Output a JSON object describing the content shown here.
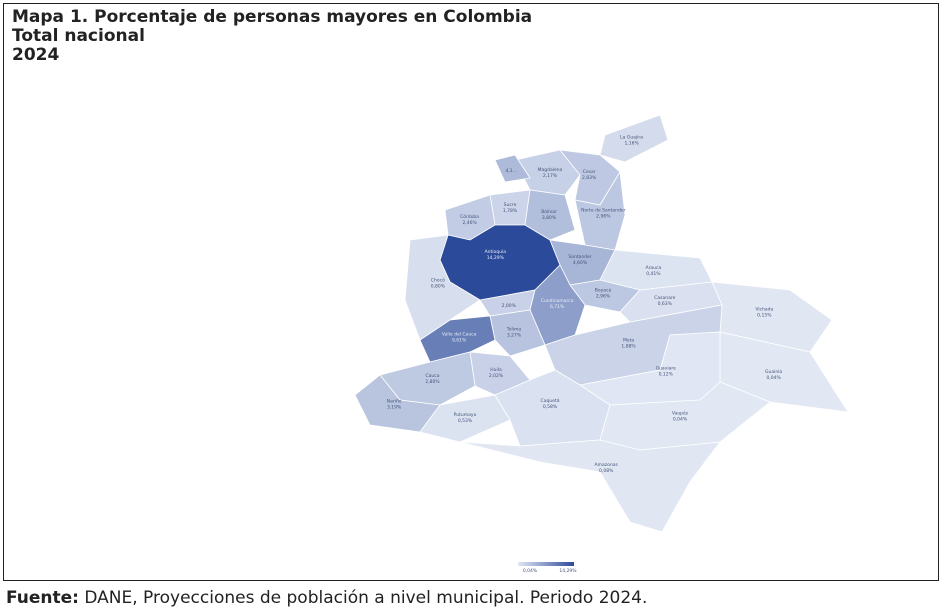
{
  "map": {
    "title": [
      "Mapa 1. Porcentaje de personas mayores en Colombia",
      "Total nacional",
      "2024"
    ],
    "footer": {
      "label": "Fuente:",
      "text": "DANE, Proyecciones de población a nivel municipal. Periodo 2024."
    },
    "legend": {
      "min": 0.04,
      "max": 14.29,
      "min_label": "0,04%",
      "max_label": "14,29%"
    },
    "regions": [
      {
        "name": "La Guajira",
        "value": 1.16,
        "value_label": "1,16%"
      },
      {
        "name": "Magdalena",
        "value": 2.17,
        "value_label": "2,17%"
      },
      {
        "value": 4.1,
        "value_label": "4,1..."
      },
      {
        "name": "Cesar",
        "value": 2.83,
        "value_label": "2,83%"
      },
      {
        "name": "Sucre",
        "value": 1.78,
        "value_label": "1,78%"
      },
      {
        "name": "Bolívar",
        "value": 3.8,
        "value_label": "3,80%"
      },
      {
        "name": "Córdoba",
        "value": 2.46,
        "value_label": "2,46%"
      },
      {
        "name": "Norte de Santander",
        "value": 2.96,
        "value_label": "2,96%"
      },
      {
        "name": "Antioquia",
        "value": 14.29,
        "value_label": "14,29%"
      },
      {
        "name": "Santander",
        "value": 4.6,
        "value_label": "4,60%"
      },
      {
        "name": "Arauca",
        "value": 0.41,
        "value_label": "0,41%"
      },
      {
        "name": "Boyacá",
        "value": 2.96,
        "value_label": "2,96%"
      },
      {
        "name": "Chocó",
        "value": 0.8,
        "value_label": "0,80%"
      },
      {
        "name": "Casanare",
        "value": 0.63,
        "value_label": "0,63%"
      },
      {
        "value": 2.0,
        "value_label": "2,00%"
      },
      {
        "name": "Cundinamarca",
        "value": 6.71,
        "value_label": "6,71%"
      },
      {
        "name": "Vichada",
        "value": 0.15,
        "value_label": "0,15%"
      },
      {
        "name": "Tolima",
        "value": 3.27,
        "value_label": "3,27%"
      },
      {
        "name": "Valle del Cauca",
        "value": 9.61,
        "value_label": "9,61%"
      },
      {
        "name": "Meta",
        "value": 1.88,
        "value_label": "1,88%"
      },
      {
        "name": "Guainía",
        "value": 0.04,
        "value_label": "0,04%"
      },
      {
        "name": "Huila",
        "value": 2.02,
        "value_label": "2,02%"
      },
      {
        "name": "Cauca",
        "value": 2.8,
        "value_label": "2,80%"
      },
      {
        "name": "Guaviare",
        "value": 0.12,
        "value_label": "0,12%"
      },
      {
        "name": "Nariño",
        "value": 3.19,
        "value_label": "3,19%"
      },
      {
        "name": "Putumayo",
        "value": 0.53,
        "value_label": "0,53%"
      },
      {
        "name": "Caquetá",
        "value": 0.58,
        "value_label": "0,58%"
      },
      {
        "name": "Vaupés",
        "value": 0.04,
        "value_label": "0,04%"
      },
      {
        "name": "Amazonas",
        "value": 0.08,
        "value_label": "0,08%"
      }
    ]
  }
}
